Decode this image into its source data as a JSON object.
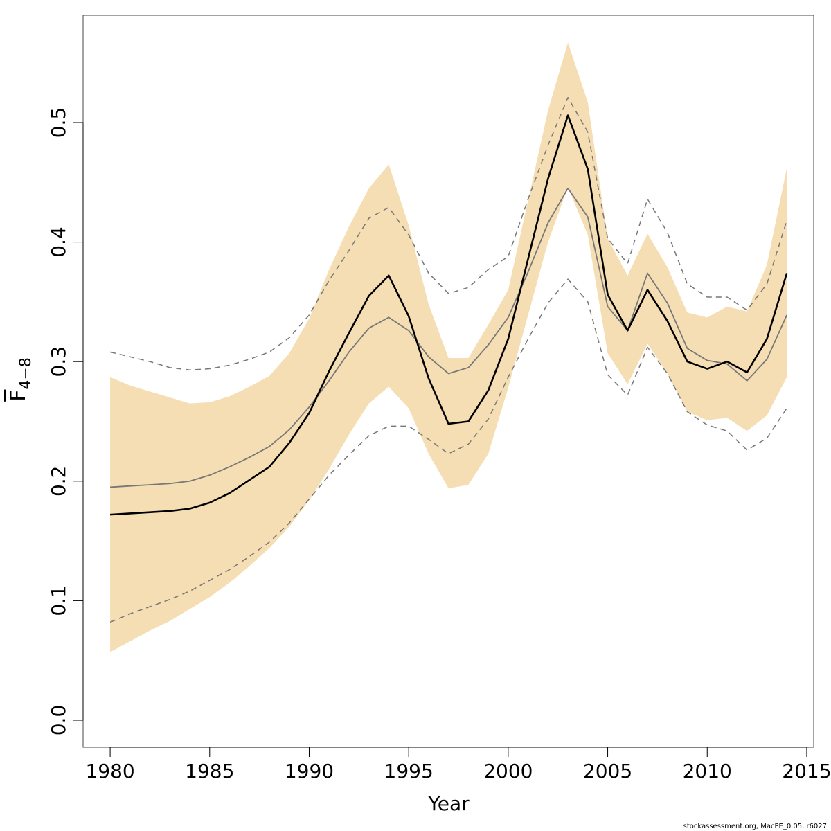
{
  "chart_data": {
    "type": "line",
    "xlabel": "Year",
    "ylabel": {
      "main": "F",
      "sub": "4−8"
    },
    "footer": "stockassessment.org, MacPE_0.05, r6027",
    "x": [
      1980,
      1981,
      1982,
      1983,
      1984,
      1985,
      1986,
      1987,
      1988,
      1989,
      1990,
      1991,
      1992,
      1993,
      1994,
      1995,
      1996,
      1997,
      1998,
      1999,
      2000,
      2001,
      2002,
      2003,
      2004,
      2005,
      2006,
      2007,
      2008,
      2009,
      2010,
      2011,
      2012,
      2013,
      2014
    ],
    "band": {
      "color": "#f5deb3",
      "lower": [
        0.057,
        0.066,
        0.075,
        0.083,
        0.093,
        0.103,
        0.115,
        0.129,
        0.144,
        0.162,
        0.184,
        0.21,
        0.239,
        0.265,
        0.279,
        0.261,
        0.223,
        0.194,
        0.197,
        0.223,
        0.278,
        0.339,
        0.4,
        0.446,
        0.406,
        0.307,
        0.281,
        0.315,
        0.29,
        0.258,
        0.251,
        0.253,
        0.242,
        0.255,
        0.287
      ],
      "upper": [
        0.287,
        0.28,
        0.275,
        0.27,
        0.265,
        0.266,
        0.271,
        0.279,
        0.288,
        0.307,
        0.336,
        0.377,
        0.413,
        0.445,
        0.465,
        0.414,
        0.348,
        0.303,
        0.303,
        0.331,
        0.36,
        0.435,
        0.51,
        0.567,
        0.517,
        0.403,
        0.372,
        0.407,
        0.379,
        0.341,
        0.337,
        0.346,
        0.342,
        0.381,
        0.462
      ]
    },
    "series": [
      {
        "color": "#777777",
        "width": 1.5,
        "dash": true,
        "values": [
          0.308,
          0.304,
          0.3,
          0.295,
          0.293,
          0.294,
          0.297,
          0.302,
          0.308,
          0.32,
          0.339,
          0.368,
          0.393,
          0.42,
          0.429,
          0.406,
          0.374,
          0.357,
          0.362,
          0.377,
          0.388,
          0.436,
          0.481,
          0.521,
          0.492,
          0.403,
          0.382,
          0.436,
          0.408,
          0.365,
          0.354,
          0.354,
          0.343,
          0.365,
          0.418
        ]
      },
      {
        "color": "#777777",
        "width": 1.5,
        "dash": true,
        "values": [
          0.082,
          0.089,
          0.095,
          0.101,
          0.108,
          0.117,
          0.126,
          0.137,
          0.149,
          0.165,
          0.185,
          0.205,
          0.222,
          0.238,
          0.246,
          0.246,
          0.235,
          0.223,
          0.231,
          0.252,
          0.287,
          0.319,
          0.349,
          0.369,
          0.35,
          0.289,
          0.272,
          0.312,
          0.29,
          0.258,
          0.247,
          0.242,
          0.226,
          0.236,
          0.261
        ]
      },
      {
        "color": "#777777",
        "width": 1.8,
        "dash": false,
        "values": [
          0.195,
          0.196,
          0.197,
          0.198,
          0.2,
          0.205,
          0.212,
          0.22,
          0.229,
          0.243,
          0.262,
          0.284,
          0.308,
          0.328,
          0.337,
          0.326,
          0.304,
          0.29,
          0.295,
          0.314,
          0.337,
          0.375,
          0.416,
          0.445,
          0.421,
          0.346,
          0.326,
          0.374,
          0.349,
          0.311,
          0.301,
          0.298,
          0.284,
          0.302,
          0.339
        ]
      },
      {
        "color": "#000000",
        "width": 2.6,
        "dash": false,
        "values": [
          0.172,
          0.173,
          0.174,
          0.175,
          0.177,
          0.182,
          0.19,
          0.201,
          0.212,
          0.232,
          0.257,
          0.292,
          0.324,
          0.355,
          0.372,
          0.338,
          0.286,
          0.248,
          0.25,
          0.276,
          0.319,
          0.386,
          0.453,
          0.506,
          0.461,
          0.356,
          0.326,
          0.36,
          0.334,
          0.3,
          0.294,
          0.3,
          0.291,
          0.319,
          0.374
        ]
      }
    ],
    "xlim": [
      1978.64,
      2015.35
    ],
    "ylim": [
      -0.0226,
      0.5898
    ],
    "xticks": [
      1980,
      1985,
      1990,
      1995,
      2000,
      2005,
      2010,
      2015
    ],
    "yticks": [
      {
        "value": 0,
        "label": "0.0"
      },
      0.1,
      0.2,
      0.3,
      0.4,
      0.5
    ]
  }
}
